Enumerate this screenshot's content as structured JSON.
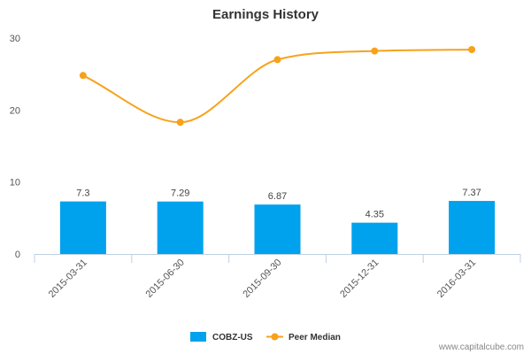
{
  "chart_data": {
    "type": "bar",
    "title": "Earnings History",
    "xlabel": "",
    "ylabel": "",
    "categories": [
      "2015-03-31",
      "2015-06-30",
      "2015-09-30",
      "2015-12-31",
      "2016-03-31"
    ],
    "series": [
      {
        "name": "COBZ-US",
        "type": "bar",
        "color": "#00a2ee",
        "values": [
          7.3,
          7.29,
          6.87,
          4.35,
          7.37
        ],
        "data_labels": [
          "7.3",
          "7.29",
          "6.87",
          "4.35",
          "7.37"
        ]
      },
      {
        "name": "Peer Median",
        "type": "line",
        "color": "#f7a21b",
        "values": [
          24.8,
          18.3,
          27.0,
          28.2,
          28.4
        ]
      }
    ],
    "ylim": [
      0,
      30
    ],
    "yticks": [
      0,
      10,
      20,
      30
    ],
    "ytick_labels": [
      "0",
      "10",
      "20",
      "30"
    ],
    "grid": false,
    "legend_position": "bottom"
  },
  "watermark": "www.capitalcube.com"
}
